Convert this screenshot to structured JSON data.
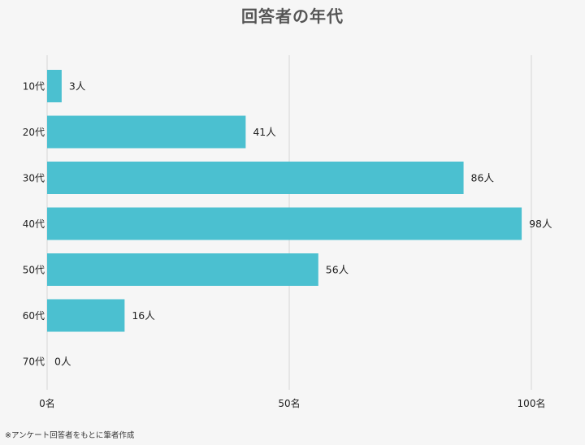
{
  "chart_data": {
    "type": "bar",
    "orientation": "horizontal",
    "title": "回答者の年代",
    "categories": [
      "10代",
      "20代",
      "30代",
      "40代",
      "50代",
      "60代",
      "70代"
    ],
    "values": [
      3,
      41,
      86,
      98,
      56,
      16,
      0
    ],
    "value_labels": [
      "3人",
      "41人",
      "86人",
      "98人",
      "56人",
      "16人",
      "0人"
    ],
    "x_ticks": [
      {
        "value": 0,
        "label": "0名"
      },
      {
        "value": 50,
        "label": "50名"
      },
      {
        "value": 100,
        "label": "100名"
      }
    ],
    "xlim": [
      0,
      100
    ],
    "grid": true,
    "bar_color": "#4bc0d0",
    "grid_color": "#d6d6d6"
  },
  "footnote": "※アンケート回答者をもとに筆者作成"
}
